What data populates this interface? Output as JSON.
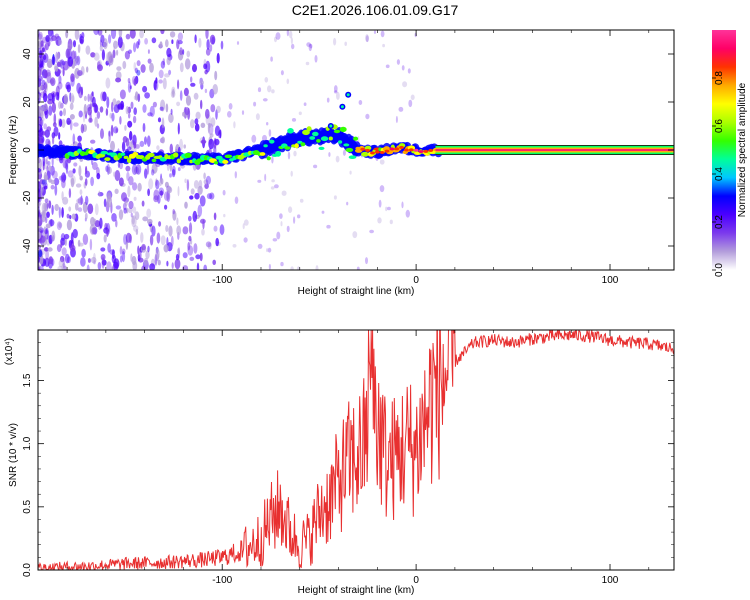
{
  "title": "C2E1.2026.106.01.09.G17",
  "chart_data": [
    {
      "type": "heatmap",
      "xlabel": "Height of straight line (km)",
      "ylabel": "Frequency (Hz)",
      "xlim": [
        -195,
        133
      ],
      "ylim": [
        -50,
        50
      ],
      "xticks": [
        -100,
        0,
        100
      ],
      "yticks": [
        -40,
        -20,
        0,
        20,
        40
      ],
      "colorbar": {
        "label": "Normalized spectral amplitude",
        "range": [
          0,
          1
        ],
        "ticks": [
          0.0,
          0.2,
          0.4,
          0.6,
          0.8
        ],
        "colors": [
          "#ffffff",
          "#b39ddb",
          "#7c3aed",
          "#4b00ff",
          "#0000ff",
          "#00c8ff",
          "#00ff99",
          "#33ff00",
          "#aaff00",
          "#ffff00",
          "#ffaa00",
          "#ff3300",
          "#ff0066",
          "#ff3399"
        ]
      },
      "ridge_center_hz": [
        {
          "x": -195,
          "y": 0
        },
        {
          "x": -150,
          "y": -3
        },
        {
          "x": -100,
          "y": -4
        },
        {
          "x": -80,
          "y": 0
        },
        {
          "x": -60,
          "y": 5
        },
        {
          "x": -40,
          "y": 6
        },
        {
          "x": -30,
          "y": 0
        },
        {
          "x": -20,
          "y": -1
        },
        {
          "x": -10,
          "y": 1
        },
        {
          "x": 0,
          "y": 0
        },
        {
          "x": 10,
          "y": 0
        },
        {
          "x": 133,
          "y": 0
        }
      ],
      "branch_hz": [
        {
          "x": -44,
          "y": 10
        },
        {
          "x": -38,
          "y": 18
        },
        {
          "x": -35,
          "y": 23
        }
      ]
    },
    {
      "type": "line",
      "xlabel": "Height of straight line (km)",
      "ylabel": "SNR (10 * v/v)",
      "yscale_label": "(x10⁴)",
      "xlim": [
        -195,
        133
      ],
      "ylim": [
        0,
        1.9
      ],
      "xticks": [
        -100,
        0,
        100
      ],
      "yticks": [
        0.0,
        0.5,
        1.0,
        1.5
      ],
      "series": [
        {
          "name": "SNR",
          "color": "#e83030",
          "x": [
            -195,
            -170,
            -150,
            -130,
            -110,
            -100,
            -90,
            -80,
            -75,
            -70,
            -65,
            -60,
            -55,
            -50,
            -45,
            -40,
            -35,
            -30,
            -25,
            -22,
            -20,
            -15,
            -10,
            -5,
            0,
            5,
            10,
            15,
            20,
            25,
            30,
            40,
            50,
            60,
            70,
            80,
            90,
            100,
            110,
            120,
            133
          ],
          "y": [
            0.02,
            0.03,
            0.05,
            0.06,
            0.08,
            0.1,
            0.15,
            0.25,
            0.4,
            0.5,
            0.3,
            0.2,
            0.25,
            0.45,
            0.55,
            0.7,
            0.85,
            0.9,
            1.05,
            1.35,
            1.15,
            0.85,
            0.9,
            1.0,
            0.95,
            1.2,
            1.45,
            1.55,
            1.65,
            1.72,
            1.8,
            1.82,
            1.8,
            1.83,
            1.85,
            1.86,
            1.85,
            1.82,
            1.8,
            1.79,
            1.75
          ]
        }
      ]
    }
  ]
}
